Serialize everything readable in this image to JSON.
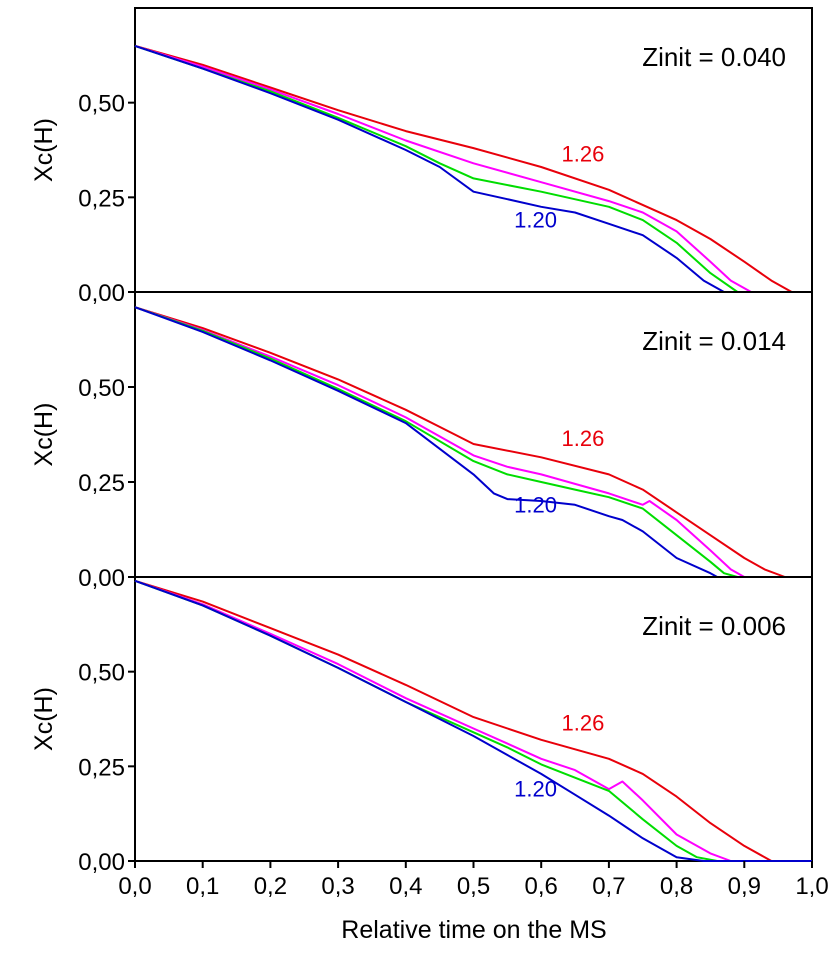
{
  "chart_data": {
    "type": "line",
    "xlabel": "Relative time on the MS",
    "xlim": [
      0.0,
      1.0
    ],
    "x_ticks": [
      "0,0",
      "0,1",
      "0,2",
      "0,3",
      "0,4",
      "0,5",
      "0,6",
      "0,7",
      "0,8",
      "0,9",
      "1,0"
    ],
    "x_tick_values": [
      0.0,
      0.1,
      0.2,
      0.3,
      0.4,
      0.5,
      0.6,
      0.7,
      0.8,
      0.9,
      1.0
    ],
    "colors": {
      "red": "#e8000b",
      "magenta": "#ff00ff",
      "green": "#00dd00",
      "blue": "#0000cc"
    },
    "panels": [
      {
        "title": "Zinit = 0.040",
        "ylabel": "Xc(H)",
        "ylim": [
          0.0,
          0.75
        ],
        "y_ticks": [
          "0,00",
          "0,25",
          "0,50"
        ],
        "y_tick_values": [
          0.0,
          0.25,
          0.5
        ],
        "series": [
          {
            "name": "1.26",
            "color": "#e8000b",
            "x": [
              0.0,
              0.1,
              0.2,
              0.3,
              0.4,
              0.5,
              0.6,
              0.7,
              0.8,
              0.85,
              0.9,
              0.94,
              0.97,
              1.0
            ],
            "y": [
              0.65,
              0.6,
              0.54,
              0.48,
              0.425,
              0.38,
              0.33,
              0.27,
              0.19,
              0.14,
              0.08,
              0.03,
              0.0,
              0.0
            ]
          },
          {
            "name": "",
            "color": "#ff00ff",
            "x": [
              0.0,
              0.1,
              0.2,
              0.3,
              0.4,
              0.5,
              0.6,
              0.7,
              0.75,
              0.8,
              0.85,
              0.88,
              0.91,
              1.0
            ],
            "y": [
              0.65,
              0.595,
              0.535,
              0.47,
              0.4,
              0.34,
              0.29,
              0.24,
              0.21,
              0.16,
              0.08,
              0.03,
              0.0,
              0.0
            ]
          },
          {
            "name": "",
            "color": "#00dd00",
            "x": [
              0.0,
              0.1,
              0.2,
              0.3,
              0.4,
              0.45,
              0.5,
              0.6,
              0.7,
              0.75,
              0.8,
              0.85,
              0.89,
              1.0
            ],
            "y": [
              0.65,
              0.59,
              0.53,
              0.46,
              0.385,
              0.34,
              0.3,
              0.265,
              0.225,
              0.19,
              0.13,
              0.05,
              0.0,
              0.0
            ]
          },
          {
            "name": "1.20",
            "color": "#0000cc",
            "x": [
              0.0,
              0.1,
              0.2,
              0.3,
              0.4,
              0.45,
              0.5,
              0.55,
              0.6,
              0.65,
              0.7,
              0.75,
              0.8,
              0.84,
              0.87,
              1.0
            ],
            "y": [
              0.65,
              0.59,
              0.525,
              0.455,
              0.375,
              0.33,
              0.265,
              0.245,
              0.225,
              0.21,
              0.18,
              0.15,
              0.09,
              0.03,
              0.0,
              0.0
            ]
          }
        ]
      },
      {
        "title": "Zinit = 0.014",
        "ylabel": "Xc(H)",
        "ylim": [
          0.0,
          0.75
        ],
        "y_ticks": [
          "0,00",
          "0,25",
          "0,50"
        ],
        "y_tick_values": [
          0.0,
          0.25,
          0.5
        ],
        "series": [
          {
            "name": "1.26",
            "color": "#e8000b",
            "x": [
              0.0,
              0.1,
              0.2,
              0.3,
              0.4,
              0.45,
              0.5,
              0.6,
              0.7,
              0.75,
              0.8,
              0.85,
              0.9,
              0.93,
              0.96,
              1.0
            ],
            "y": [
              0.71,
              0.655,
              0.59,
              0.52,
              0.44,
              0.395,
              0.35,
              0.315,
              0.27,
              0.23,
              0.17,
              0.11,
              0.05,
              0.02,
              0.0,
              0.0
            ]
          },
          {
            "name": "",
            "color": "#ff00ff",
            "x": [
              0.0,
              0.1,
              0.2,
              0.3,
              0.4,
              0.5,
              0.55,
              0.6,
              0.65,
              0.7,
              0.75,
              0.76,
              0.8,
              0.85,
              0.88,
              0.9,
              1.0
            ],
            "y": [
              0.71,
              0.65,
              0.58,
              0.505,
              0.42,
              0.32,
              0.29,
              0.27,
              0.245,
              0.22,
              0.19,
              0.2,
              0.15,
              0.07,
              0.02,
              0.0,
              0.0
            ]
          },
          {
            "name": "",
            "color": "#00dd00",
            "x": [
              0.0,
              0.1,
              0.2,
              0.3,
              0.4,
              0.5,
              0.55,
              0.6,
              0.65,
              0.7,
              0.75,
              0.8,
              0.85,
              0.87,
              0.89,
              1.0
            ],
            "y": [
              0.71,
              0.648,
              0.575,
              0.495,
              0.41,
              0.305,
              0.27,
              0.25,
              0.23,
              0.21,
              0.18,
              0.11,
              0.04,
              0.01,
              0.0,
              0.0
            ]
          },
          {
            "name": "1.20",
            "color": "#0000cc",
            "x": [
              0.0,
              0.1,
              0.2,
              0.3,
              0.4,
              0.5,
              0.53,
              0.55,
              0.6,
              0.65,
              0.7,
              0.72,
              0.75,
              0.8,
              0.85,
              0.86,
              0.88,
              1.0
            ],
            "y": [
              0.71,
              0.645,
              0.57,
              0.49,
              0.405,
              0.27,
              0.22,
              0.205,
              0.2,
              0.19,
              0.16,
              0.15,
              0.12,
              0.05,
              0.01,
              0.0,
              0.0,
              0.0
            ]
          }
        ]
      },
      {
        "title": "Zinit = 0.006",
        "ylabel": "Xc(H)",
        "ylim": [
          0.0,
          0.75
        ],
        "y_ticks": [
          "0,00",
          "0,25",
          "0,50"
        ],
        "y_tick_values": [
          0.0,
          0.25,
          0.5
        ],
        "series": [
          {
            "name": "1.26",
            "color": "#e8000b",
            "x": [
              0.0,
              0.1,
              0.2,
              0.3,
              0.4,
              0.5,
              0.6,
              0.7,
              0.75,
              0.8,
              0.85,
              0.9,
              0.94,
              1.0
            ],
            "y": [
              0.74,
              0.685,
              0.615,
              0.545,
              0.465,
              0.38,
              0.32,
              0.27,
              0.23,
              0.17,
              0.1,
              0.04,
              0.0,
              0.0
            ]
          },
          {
            "name": "",
            "color": "#ff00ff",
            "x": [
              0.0,
              0.1,
              0.2,
              0.3,
              0.4,
              0.5,
              0.55,
              0.6,
              0.65,
              0.7,
              0.72,
              0.75,
              0.8,
              0.85,
              0.88,
              0.9,
              1.0
            ],
            "y": [
              0.74,
              0.678,
              0.6,
              0.52,
              0.43,
              0.35,
              0.31,
              0.27,
              0.24,
              0.19,
              0.21,
              0.16,
              0.07,
              0.02,
              0.0,
              0.0,
              0.0
            ]
          },
          {
            "name": "",
            "color": "#00dd00",
            "x": [
              0.0,
              0.1,
              0.2,
              0.3,
              0.4,
              0.5,
              0.55,
              0.6,
              0.65,
              0.7,
              0.75,
              0.8,
              0.83,
              0.86,
              1.0
            ],
            "y": [
              0.74,
              0.675,
              0.595,
              0.51,
              0.42,
              0.34,
              0.3,
              0.255,
              0.22,
              0.185,
              0.11,
              0.04,
              0.01,
              0.0,
              0.0
            ]
          },
          {
            "name": "1.20",
            "color": "#0000cc",
            "x": [
              0.0,
              0.1,
              0.2,
              0.3,
              0.4,
              0.5,
              0.55,
              0.6,
              0.65,
              0.7,
              0.75,
              0.8,
              0.82,
              0.84,
              0.86,
              1.0
            ],
            "y": [
              0.74,
              0.675,
              0.595,
              0.51,
              0.42,
              0.33,
              0.28,
              0.23,
              0.175,
              0.12,
              0.06,
              0.01,
              0.005,
              0.0,
              0.0,
              0.0
            ]
          }
        ]
      }
    ]
  }
}
